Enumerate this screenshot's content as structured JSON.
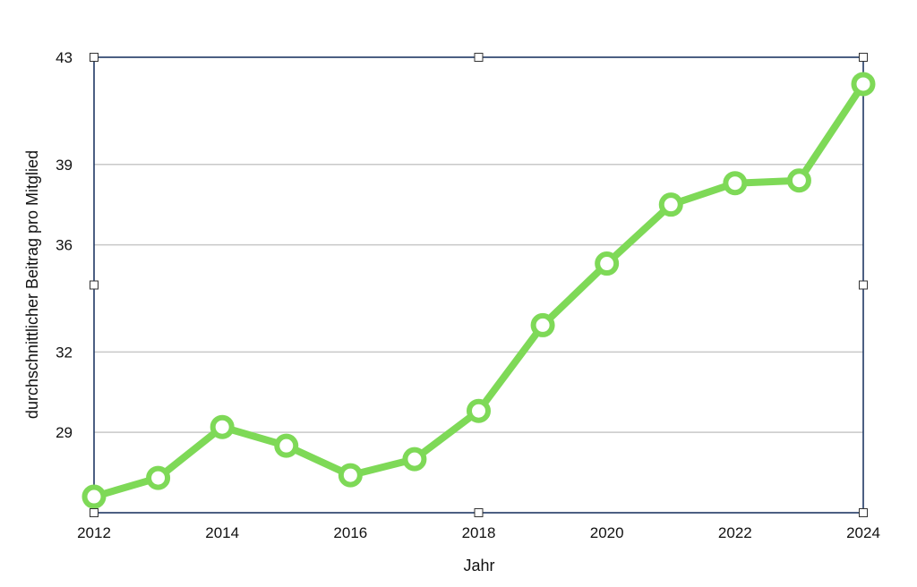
{
  "chart_data": {
    "type": "line",
    "title": "",
    "xlabel": "Jahr",
    "ylabel": "durchschnittlicher Beitrag pro Mitglied",
    "xlim": [
      2012,
      2024
    ],
    "ylim": [
      26,
      43
    ],
    "x_ticks": [
      "2012",
      "2014",
      "2016",
      "2018",
      "2020",
      "2022",
      "2024"
    ],
    "y_ticks": [
      "29",
      "32",
      "36",
      "39",
      "43"
    ],
    "y_tick_values": [
      29,
      32,
      36,
      39,
      43
    ],
    "grid": "horizontal",
    "legend": "none",
    "series": [
      {
        "x": [
          2012,
          2013,
          2014,
          2015,
          2016,
          2017,
          2018,
          2019,
          2020,
          2021,
          2022,
          2023,
          2024
        ],
        "values": [
          26.6,
          27.3,
          29.2,
          28.5,
          27.4,
          28.0,
          29.8,
          33.0,
          35.3,
          37.5,
          38.3,
          38.4,
          42.0
        ],
        "color": "#7ed957"
      }
    ]
  },
  "colors": {
    "frame": "#1f3864",
    "grid": "#c8c8c8",
    "line": "#7ed957",
    "marker_fill": "#ffffff"
  }
}
